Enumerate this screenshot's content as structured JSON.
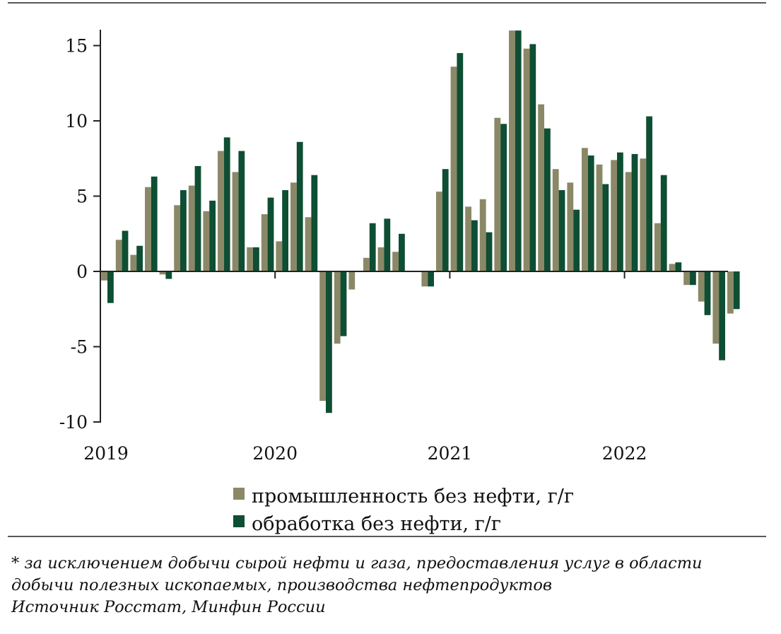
{
  "chart_data": {
    "type": "bar",
    "title": "",
    "xlabel": "",
    "ylabel": "",
    "ylim": [
      -10,
      16
    ],
    "yticks": [
      15,
      10,
      5,
      0,
      -5,
      -10
    ],
    "ytick_labels": [
      "15",
      "10",
      "5",
      "0",
      "-5",
      "-10"
    ],
    "year_labels": [
      "2019",
      "2020",
      "2021",
      "2022"
    ],
    "categories": [
      "2019-01",
      "2019-02",
      "2019-03",
      "2019-04",
      "2019-05",
      "2019-06",
      "2019-07",
      "2019-08",
      "2019-09",
      "2019-10",
      "2019-11",
      "2019-12",
      "2020-01",
      "2020-02",
      "2020-03",
      "2020-04",
      "2020-05",
      "2020-06",
      "2020-07",
      "2020-08",
      "2020-09",
      "2020-10",
      "2020-11",
      "2020-12",
      "2021-01",
      "2021-02",
      "2021-03",
      "2021-04",
      "2021-05",
      "2021-06",
      "2021-07",
      "2021-08",
      "2021-09",
      "2021-10",
      "2021-11",
      "2021-12",
      "2022-01",
      "2022-02",
      "2022-03",
      "2022-04",
      "2022-05",
      "2022-06",
      "2022-07",
      "2022-08",
      "2022-09",
      "2022-10",
      "2022-11",
      "2022-12"
    ],
    "series": [
      {
        "name": "промышленность без нефти, г/г",
        "color": "#8b8868",
        "values": [
          -0.6,
          2.1,
          1.1,
          5.6,
          -0.2,
          4.4,
          5.7,
          4.0,
          8.0,
          6.6,
          1.6,
          3.8,
          2.0,
          5.9,
          3.6,
          -8.6,
          -4.8,
          -1.2,
          0.9,
          1.6,
          1.3,
          null,
          -1.0,
          5.3,
          13.6,
          4.3,
          4.8,
          10.2,
          16.0,
          14.8,
          11.1,
          6.8,
          5.9,
          8.2,
          7.1,
          7.4,
          6.6,
          7.5,
          3.2,
          0.5,
          -0.9,
          -2.0,
          -4.8,
          -2.8,
          null,
          null,
          null,
          null
        ]
      },
      {
        "name": "обработка без нефти, г/г",
        "color": "#0e4e33",
        "values": [
          -2.1,
          2.7,
          1.7,
          6.3,
          -0.5,
          5.4,
          7.0,
          4.7,
          8.9,
          8.0,
          1.6,
          4.9,
          5.4,
          8.6,
          6.4,
          -9.4,
          -4.3,
          null,
          3.2,
          3.5,
          2.5,
          null,
          -1.0,
          6.8,
          14.5,
          3.4,
          2.6,
          9.8,
          16.0,
          15.1,
          9.5,
          5.4,
          4.1,
          7.7,
          5.8,
          7.9,
          7.8,
          10.3,
          6.4,
          0.6,
          -0.9,
          -2.9,
          -5.9,
          -2.5,
          null,
          null,
          null,
          null
        ]
      }
    ],
    "legend": [
      "промышленность без нефти, г/г",
      "обработка без нефти, г/г"
    ],
    "legend_position": "bottom"
  },
  "notes": {
    "line1": "* за исключением добычи сырой нефти и газа, предоставления услуг в области",
    "line2": "добычи полезных ископаемых, производства нефтепродуктов",
    "source": "Источник Росстат, Минфин России"
  }
}
